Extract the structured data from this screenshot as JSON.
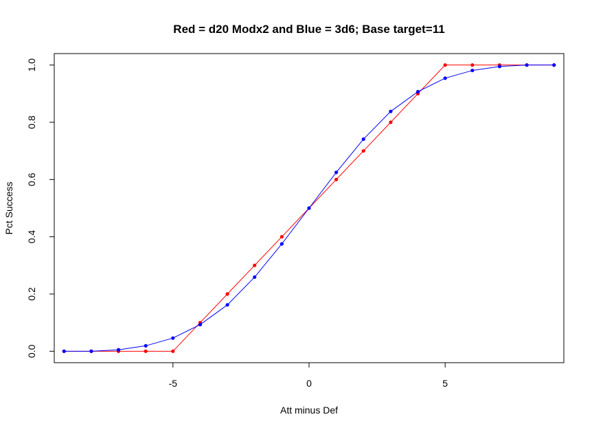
{
  "chart_data": {
    "type": "line",
    "title": "Red = d20 Modx2 and  Blue = 3d6; Base target=11",
    "xlabel": "Att minus Def",
    "ylabel": "Pct Success",
    "xlim": [
      -9.36,
      9.36
    ],
    "ylim": [
      -0.04,
      1.04
    ],
    "x_ticks": [
      -5,
      0,
      5
    ],
    "x_tick_labels": [
      "-5",
      "0",
      "5"
    ],
    "y_ticks": [
      0,
      0.2,
      0.4,
      0.6,
      0.8,
      1
    ],
    "y_tick_labels": [
      "0.0",
      "0.2",
      "0.4",
      "0.6",
      "0.8",
      "1.0"
    ],
    "grid": false,
    "series": [
      {
        "color": "#ff0000",
        "x": [
          -9,
          -8,
          -7,
          -6,
          -5,
          -4,
          -3,
          -2,
          -1,
          0,
          1,
          2,
          3,
          4,
          5,
          6,
          7,
          8,
          9
        ],
        "y": [
          0,
          0,
          0,
          0,
          0,
          0.1,
          0.2,
          0.3,
          0.4,
          0.5,
          0.6,
          0.7,
          0.8,
          0.9,
          1,
          1,
          1,
          1,
          1
        ]
      },
      {
        "color": "#0000ff",
        "x": [
          -9,
          -8,
          -7,
          -6,
          -5,
          -4,
          -3,
          -2,
          -1,
          0,
          1,
          2,
          3,
          4,
          5,
          6,
          7,
          8,
          9
        ],
        "y": [
          0,
          0,
          0.005,
          0.019,
          0.046,
          0.093,
          0.162,
          0.259,
          0.375,
          0.5,
          0.625,
          0.741,
          0.838,
          0.907,
          0.954,
          0.981,
          0.995,
          1,
          1
        ]
      }
    ]
  }
}
